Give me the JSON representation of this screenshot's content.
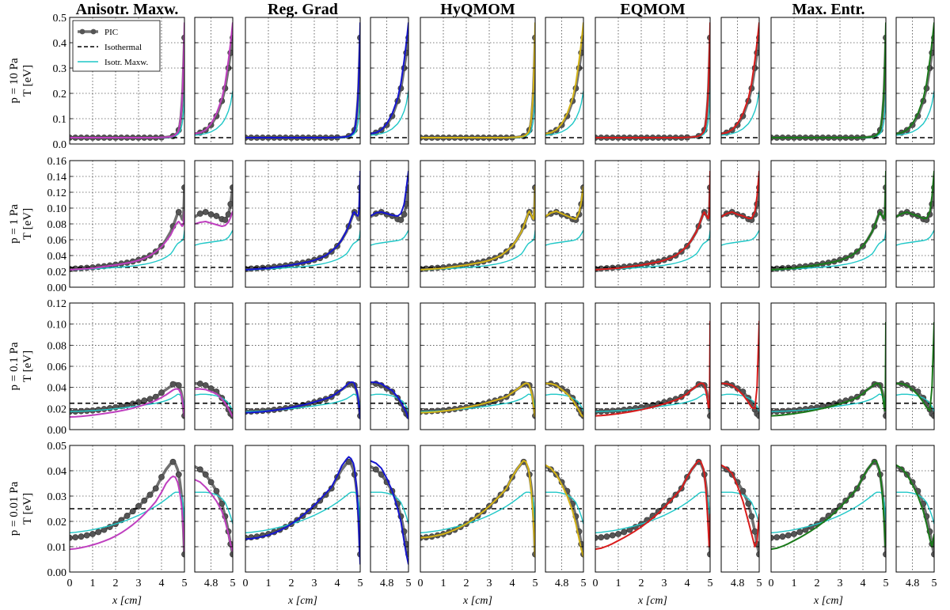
{
  "chart_data": {
    "type": "line",
    "column_titles": [
      "Anisotr. Maxw.",
      "Reg. Grad",
      "HyQMOM",
      "EQMOM",
      "Max. Entr."
    ],
    "row_labels": [
      "p = 10 Pa",
      "p = 1 Pa",
      "p = 0.1 Pa",
      "p = 0.01 Pa"
    ],
    "ylabel": "T [eV]",
    "xlabel": "x [cm]",
    "xlim_main": [
      0,
      5
    ],
    "xlim_zoom": [
      4.65,
      5
    ],
    "x_ticks_main": [
      "0",
      "1",
      "2",
      "3",
      "4",
      "5"
    ],
    "x_ticks_zoom": [
      "4.8",
      "5"
    ],
    "y_ticks": [
      [
        "0.0",
        "0.1",
        "0.2",
        "0.3",
        "0.4",
        "0.5"
      ],
      [
        "0.00",
        "0.02",
        "0.04",
        "0.06",
        "0.08",
        "0.10",
        "0.12",
        "0.14",
        "0.16"
      ],
      [
        "0.00",
        "0.02",
        "0.04",
        "0.06",
        "0.08",
        "0.10",
        "0.12"
      ],
      [
        "0.00",
        "0.01",
        "0.02",
        "0.03",
        "0.04",
        "0.05"
      ]
    ],
    "ylims": [
      [
        0,
        0.5
      ],
      [
        0,
        0.16
      ],
      [
        0,
        0.12
      ],
      [
        0,
        0.05
      ]
    ],
    "grid": true,
    "legend": {
      "placement": "top-left",
      "entries": [
        "PIC",
        "Isothermal",
        "Isotr. Maxw."
      ]
    },
    "colors": {
      "pic": "#4d4d4d",
      "isothermal": "#000000",
      "isotropic": "#1fc7c7",
      "models": [
        "#bf3fbf",
        "#1515d0",
        "#d4b416",
        "#d91c1c",
        "#1a7a1a"
      ]
    },
    "isothermal_T": 0.025,
    "x": [
      0,
      0.25,
      0.5,
      0.75,
      1,
      1.25,
      1.5,
      1.75,
      2,
      2.25,
      2.5,
      2.75,
      3,
      3.25,
      3.5,
      3.75,
      4,
      4.2,
      4.4,
      4.5,
      4.6,
      4.7,
      4.75,
      4.8,
      4.85,
      4.9,
      4.93,
      4.96,
      4.98,
      5
    ],
    "rows": [
      {
        "pic": [
          0.025,
          0.025,
          0.025,
          0.025,
          0.025,
          0.025,
          0.025,
          0.025,
          0.025,
          0.025,
          0.025,
          0.025,
          0.025,
          0.025,
          0.025,
          0.025,
          0.026,
          0.027,
          0.029,
          0.031,
          0.036,
          0.045,
          0.055,
          0.075,
          0.11,
          0.17,
          0.22,
          0.3,
          0.36,
          0.42
        ],
        "isotropic": [
          0.025,
          0.025,
          0.025,
          0.025,
          0.025,
          0.025,
          0.025,
          0.025,
          0.025,
          0.025,
          0.025,
          0.025,
          0.025,
          0.025,
          0.025,
          0.025,
          0.025,
          0.025,
          0.027,
          0.029,
          0.032,
          0.037,
          0.041,
          0.048,
          0.06,
          0.08,
          0.1,
          0.13,
          0.16,
          0.21
        ],
        "models": [
          [
            0.025,
            0.025,
            0.025,
            0.025,
            0.025,
            0.025,
            0.025,
            0.025,
            0.025,
            0.025,
            0.025,
            0.025,
            0.025,
            0.025,
            0.025,
            0.025,
            0.026,
            0.027,
            0.029,
            0.031,
            0.036,
            0.045,
            0.055,
            0.08,
            0.12,
            0.18,
            0.24,
            0.33,
            0.4,
            0.48
          ],
          [
            0.025,
            0.025,
            0.025,
            0.025,
            0.025,
            0.025,
            0.025,
            0.025,
            0.025,
            0.025,
            0.025,
            0.025,
            0.025,
            0.025,
            0.025,
            0.025,
            0.026,
            0.027,
            0.029,
            0.031,
            0.036,
            0.045,
            0.056,
            0.08,
            0.12,
            0.18,
            0.24,
            0.33,
            0.4,
            0.48
          ],
          [
            0.025,
            0.025,
            0.025,
            0.025,
            0.025,
            0.025,
            0.025,
            0.025,
            0.025,
            0.025,
            0.025,
            0.025,
            0.025,
            0.025,
            0.025,
            0.025,
            0.026,
            0.027,
            0.029,
            0.031,
            0.036,
            0.045,
            0.056,
            0.08,
            0.12,
            0.18,
            0.24,
            0.33,
            0.4,
            0.48
          ],
          [
            0.025,
            0.025,
            0.025,
            0.025,
            0.025,
            0.025,
            0.025,
            0.025,
            0.025,
            0.025,
            0.025,
            0.025,
            0.025,
            0.025,
            0.025,
            0.025,
            0.026,
            0.027,
            0.029,
            0.031,
            0.036,
            0.045,
            0.056,
            0.08,
            0.12,
            0.18,
            0.24,
            0.33,
            0.4,
            0.48
          ],
          [
            0.025,
            0.025,
            0.025,
            0.025,
            0.025,
            0.025,
            0.025,
            0.025,
            0.025,
            0.025,
            0.025,
            0.025,
            0.025,
            0.025,
            0.025,
            0.025,
            0.026,
            0.027,
            0.029,
            0.031,
            0.036,
            0.045,
            0.056,
            0.08,
            0.12,
            0.18,
            0.24,
            0.33,
            0.4,
            0.48
          ]
        ]
      },
      {
        "pic": [
          0.023,
          0.0235,
          0.024,
          0.0245,
          0.025,
          0.0258,
          0.0265,
          0.0275,
          0.0285,
          0.0298,
          0.031,
          0.0325,
          0.0345,
          0.0368,
          0.04,
          0.045,
          0.052,
          0.06,
          0.07,
          0.077,
          0.085,
          0.093,
          0.095,
          0.092,
          0.09,
          0.086,
          0.085,
          0.092,
          0.105,
          0.126
        ],
        "isotropic": [
          0.022,
          0.022,
          0.0225,
          0.023,
          0.0232,
          0.0235,
          0.024,
          0.0245,
          0.025,
          0.0255,
          0.026,
          0.0268,
          0.0278,
          0.029,
          0.0305,
          0.0325,
          0.035,
          0.038,
          0.042,
          0.046,
          0.051,
          0.055,
          0.056,
          0.057,
          0.058,
          0.059,
          0.06,
          0.063,
          0.067,
          0.072
        ],
        "models": [
          [
            0.022,
            0.0225,
            0.023,
            0.0235,
            0.024,
            0.025,
            0.026,
            0.027,
            0.028,
            0.0293,
            0.0305,
            0.032,
            0.034,
            0.0365,
            0.04,
            0.045,
            0.051,
            0.058,
            0.066,
            0.072,
            0.078,
            0.082,
            0.083,
            0.081,
            0.079,
            0.077,
            0.078,
            0.082,
            0.088,
            0.096
          ],
          [
            0.022,
            0.0225,
            0.023,
            0.0235,
            0.024,
            0.025,
            0.026,
            0.027,
            0.028,
            0.0293,
            0.0306,
            0.032,
            0.034,
            0.0367,
            0.04,
            0.0455,
            0.052,
            0.06,
            0.071,
            0.078,
            0.086,
            0.094,
            0.095,
            0.093,
            0.091,
            0.09,
            0.093,
            0.105,
            0.125,
            0.147
          ],
          [
            0.022,
            0.0225,
            0.023,
            0.0235,
            0.024,
            0.025,
            0.026,
            0.027,
            0.028,
            0.0293,
            0.0306,
            0.032,
            0.034,
            0.0367,
            0.04,
            0.0455,
            0.052,
            0.06,
            0.07,
            0.077,
            0.085,
            0.094,
            0.096,
            0.093,
            0.09,
            0.087,
            0.086,
            0.094,
            0.108,
            0.128
          ],
          [
            0.022,
            0.0225,
            0.023,
            0.0235,
            0.024,
            0.025,
            0.026,
            0.027,
            0.028,
            0.0293,
            0.0306,
            0.032,
            0.034,
            0.0367,
            0.04,
            0.0455,
            0.052,
            0.06,
            0.07,
            0.077,
            0.085,
            0.093,
            0.095,
            0.092,
            0.09,
            0.087,
            0.087,
            0.095,
            0.115,
            0.147
          ],
          [
            0.022,
            0.0225,
            0.023,
            0.0235,
            0.024,
            0.025,
            0.026,
            0.027,
            0.028,
            0.0293,
            0.0306,
            0.032,
            0.034,
            0.0367,
            0.04,
            0.0455,
            0.052,
            0.06,
            0.07,
            0.077,
            0.085,
            0.093,
            0.095,
            0.092,
            0.09,
            0.087,
            0.087,
            0.095,
            0.115,
            0.147
          ]
        ]
      },
      {
        "pic": [
          0.017,
          0.0172,
          0.0175,
          0.0178,
          0.0182,
          0.0188,
          0.0195,
          0.0203,
          0.0212,
          0.0222,
          0.0233,
          0.0245,
          0.026,
          0.0275,
          0.029,
          0.031,
          0.035,
          0.038,
          0.041,
          0.043,
          0.044,
          0.0435,
          0.042,
          0.039,
          0.036,
          0.03,
          0.025,
          0.019,
          0.015,
          0.013
        ],
        "isotropic": [
          0.017,
          0.0172,
          0.0174,
          0.0177,
          0.018,
          0.0184,
          0.0188,
          0.0193,
          0.0198,
          0.0204,
          0.0211,
          0.0218,
          0.0225,
          0.0233,
          0.0241,
          0.025,
          0.0262,
          0.0275,
          0.0292,
          0.0305,
          0.0318,
          0.0335,
          0.0335,
          0.033,
          0.032,
          0.03,
          0.028,
          0.025,
          0.022,
          0.017
        ],
        "models": [
          [
            0.012,
            0.0122,
            0.0126,
            0.0131,
            0.0137,
            0.0144,
            0.0152,
            0.016,
            0.0169,
            0.0179,
            0.019,
            0.0203,
            0.0219,
            0.0236,
            0.0255,
            0.0276,
            0.0305,
            0.033,
            0.036,
            0.0375,
            0.0385,
            0.0385,
            0.038,
            0.036,
            0.034,
            0.029,
            0.025,
            0.02,
            0.016,
            0.012
          ],
          [
            0.016,
            0.0162,
            0.0166,
            0.017,
            0.0176,
            0.0183,
            0.0191,
            0.02,
            0.021,
            0.0221,
            0.0233,
            0.0246,
            0.0261,
            0.0277,
            0.0293,
            0.0312,
            0.035,
            0.038,
            0.042,
            0.044,
            0.045,
            0.0448,
            0.0435,
            0.04,
            0.037,
            0.031,
            0.026,
            0.02,
            0.016,
            0.01
          ],
          [
            0.016,
            0.0162,
            0.0166,
            0.017,
            0.0176,
            0.0183,
            0.0191,
            0.02,
            0.021,
            0.0221,
            0.0233,
            0.0246,
            0.0261,
            0.0277,
            0.0293,
            0.0312,
            0.035,
            0.038,
            0.041,
            0.043,
            0.044,
            0.0435,
            0.042,
            0.038,
            0.034,
            0.028,
            0.023,
            0.018,
            0.014,
            0.012
          ],
          [
            0.013,
            0.0133,
            0.0138,
            0.0144,
            0.0151,
            0.0159,
            0.0168,
            0.0178,
            0.0189,
            0.0201,
            0.0214,
            0.0228,
            0.0244,
            0.0262,
            0.0281,
            0.0302,
            0.034,
            0.038,
            0.041,
            0.043,
            0.044,
            0.0435,
            0.042,
            0.038,
            0.033,
            0.026,
            0.021,
            0.02,
            0.04,
            0.103
          ],
          [
            0.013,
            0.0133,
            0.0138,
            0.0144,
            0.0151,
            0.0159,
            0.0168,
            0.0178,
            0.0189,
            0.0201,
            0.0214,
            0.0228,
            0.0244,
            0.0262,
            0.0281,
            0.0302,
            0.034,
            0.038,
            0.041,
            0.043,
            0.044,
            0.0435,
            0.042,
            0.038,
            0.033,
            0.026,
            0.021,
            0.018,
            0.04,
            0.102
          ]
        ]
      },
      {
        "pic": [
          0.0135,
          0.0137,
          0.014,
          0.0145,
          0.015,
          0.0158,
          0.0167,
          0.0178,
          0.019,
          0.0205,
          0.0222,
          0.024,
          0.026,
          0.0282,
          0.0305,
          0.033,
          0.0375,
          0.0405,
          0.0428,
          0.0435,
          0.0428,
          0.0405,
          0.0385,
          0.0355,
          0.032,
          0.027,
          0.022,
          0.016,
          0.011,
          0.007
        ],
        "isotropic": [
          0.0155,
          0.0157,
          0.016,
          0.0163,
          0.0167,
          0.0172,
          0.0177,
          0.0183,
          0.019,
          0.0197,
          0.0205,
          0.0214,
          0.0224,
          0.0235,
          0.0247,
          0.026,
          0.0275,
          0.0288,
          0.0302,
          0.031,
          0.0315,
          0.0315,
          0.0315,
          0.0312,
          0.0305,
          0.029,
          0.0275,
          0.0245,
          0.022,
          0.019
        ],
        "models": [
          [
            0.009,
            0.0092,
            0.0096,
            0.0101,
            0.0107,
            0.0114,
            0.0122,
            0.0131,
            0.0142,
            0.0155,
            0.017,
            0.0187,
            0.0206,
            0.0228,
            0.0252,
            0.0278,
            0.0315,
            0.035,
            0.0372,
            0.0378,
            0.0375,
            0.0355,
            0.0335,
            0.031,
            0.028,
            0.024,
            0.02,
            0.015,
            0.011,
            0.008
          ],
          [
            0.013,
            0.0132,
            0.0135,
            0.014,
            0.0146,
            0.0154,
            0.0164,
            0.0176,
            0.019,
            0.0206,
            0.0224,
            0.0243,
            0.0264,
            0.0287,
            0.0311,
            0.0336,
            0.038,
            0.042,
            0.0445,
            0.0455,
            0.0448,
            0.043,
            0.041,
            0.037,
            0.032,
            0.025,
            0.02,
            0.012,
            0.007,
            0.003
          ],
          [
            0.0135,
            0.0137,
            0.014,
            0.0145,
            0.015,
            0.0158,
            0.0167,
            0.0178,
            0.019,
            0.0205,
            0.0222,
            0.024,
            0.026,
            0.0282,
            0.0305,
            0.033,
            0.0375,
            0.0405,
            0.043,
            0.044,
            0.0435,
            0.041,
            0.0385,
            0.0345,
            0.03,
            0.024,
            0.019,
            0.013,
            0.009,
            0.006
          ],
          [
            0.009,
            0.0094,
            0.0102,
            0.0112,
            0.0124,
            0.0136,
            0.0149,
            0.0163,
            0.0178,
            0.0195,
            0.0213,
            0.0233,
            0.0255,
            0.0279,
            0.0304,
            0.033,
            0.0375,
            0.0405,
            0.043,
            0.044,
            0.0435,
            0.041,
            0.039,
            0.034,
            0.028,
            0.02,
            0.015,
            0.01,
            0.012,
            0.023
          ],
          [
            0.009,
            0.0094,
            0.0102,
            0.0112,
            0.0124,
            0.0136,
            0.0149,
            0.0163,
            0.0178,
            0.0195,
            0.0213,
            0.0233,
            0.0255,
            0.0279,
            0.0304,
            0.033,
            0.0375,
            0.0405,
            0.043,
            0.044,
            0.0435,
            0.041,
            0.0385,
            0.0345,
            0.03,
            0.024,
            0.019,
            0.013,
            0.01,
            0.015
          ]
        ]
      }
    ]
  }
}
